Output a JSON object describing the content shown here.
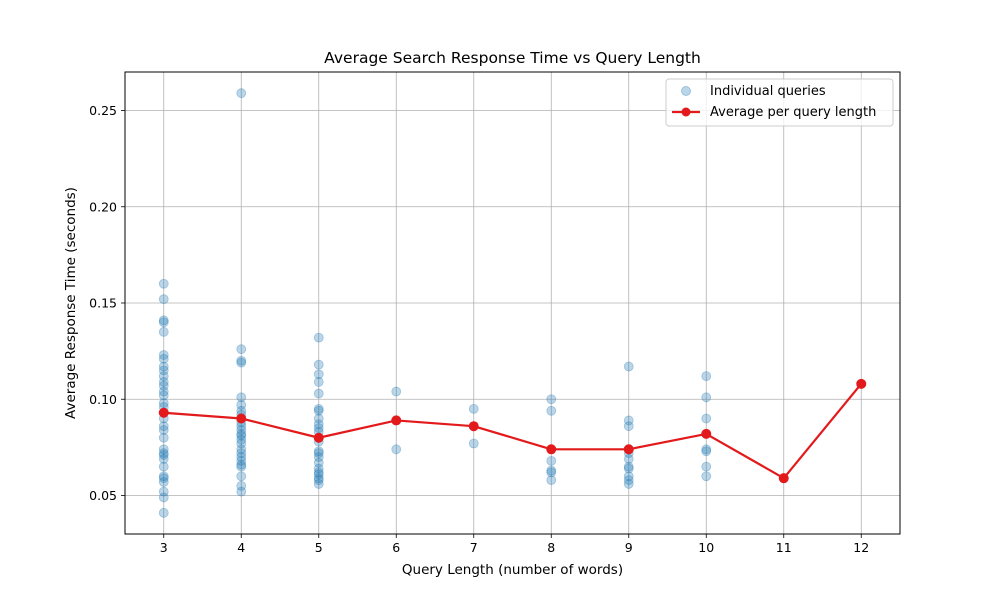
{
  "chart_data": {
    "type": "scatter",
    "title": "Average Search Response Time vs Query Length",
    "xlabel": "Query Length (number of words)",
    "ylabel": "Average Response Time (seconds)",
    "xlim": [
      2.5,
      12.5
    ],
    "ylim": [
      0.03,
      0.27
    ],
    "xticks": [
      3,
      4,
      5,
      6,
      7,
      8,
      9,
      10,
      11,
      12
    ],
    "yticks": [
      0.05,
      0.1,
      0.15,
      0.2,
      0.25
    ],
    "ytick_labels": [
      "0.05",
      "0.10",
      "0.15",
      "0.20",
      "0.25"
    ],
    "grid": true,
    "legend_position": "top-right",
    "series": [
      {
        "name": "Individual queries",
        "kind": "scatter",
        "color": "#1f77b4",
        "points": [
          {
            "x": 3,
            "y": 0.16
          },
          {
            "x": 3,
            "y": 0.152
          },
          {
            "x": 3,
            "y": 0.141
          },
          {
            "x": 3,
            "y": 0.14
          },
          {
            "x": 3,
            "y": 0.135
          },
          {
            "x": 3,
            "y": 0.123
          },
          {
            "x": 3,
            "y": 0.121
          },
          {
            "x": 3,
            "y": 0.117
          },
          {
            "x": 3,
            "y": 0.115
          },
          {
            "x": 3,
            "y": 0.112
          },
          {
            "x": 3,
            "y": 0.109
          },
          {
            "x": 3,
            "y": 0.107
          },
          {
            "x": 3,
            "y": 0.104
          },
          {
            "x": 3,
            "y": 0.102
          },
          {
            "x": 3,
            "y": 0.098
          },
          {
            "x": 3,
            "y": 0.096
          },
          {
            "x": 3,
            "y": 0.093
          },
          {
            "x": 3,
            "y": 0.09
          },
          {
            "x": 3,
            "y": 0.086
          },
          {
            "x": 3,
            "y": 0.084
          },
          {
            "x": 3,
            "y": 0.08
          },
          {
            "x": 3,
            "y": 0.074
          },
          {
            "x": 3,
            "y": 0.072
          },
          {
            "x": 3,
            "y": 0.071
          },
          {
            "x": 3,
            "y": 0.069
          },
          {
            "x": 3,
            "y": 0.065
          },
          {
            "x": 3,
            "y": 0.06
          },
          {
            "x": 3,
            "y": 0.059
          },
          {
            "x": 3,
            "y": 0.057
          },
          {
            "x": 3,
            "y": 0.052
          },
          {
            "x": 3,
            "y": 0.049
          },
          {
            "x": 3,
            "y": 0.041
          },
          {
            "x": 4,
            "y": 0.259
          },
          {
            "x": 4,
            "y": 0.126
          },
          {
            "x": 4,
            "y": 0.12
          },
          {
            "x": 4,
            "y": 0.119
          },
          {
            "x": 4,
            "y": 0.101
          },
          {
            "x": 4,
            "y": 0.097
          },
          {
            "x": 4,
            "y": 0.094
          },
          {
            "x": 4,
            "y": 0.092
          },
          {
            "x": 4,
            "y": 0.09
          },
          {
            "x": 4,
            "y": 0.088
          },
          {
            "x": 4,
            "y": 0.086
          },
          {
            "x": 4,
            "y": 0.084
          },
          {
            "x": 4,
            "y": 0.082
          },
          {
            "x": 4,
            "y": 0.081
          },
          {
            "x": 4,
            "y": 0.079
          },
          {
            "x": 4,
            "y": 0.077
          },
          {
            "x": 4,
            "y": 0.074
          },
          {
            "x": 4,
            "y": 0.072
          },
          {
            "x": 4,
            "y": 0.07
          },
          {
            "x": 4,
            "y": 0.068
          },
          {
            "x": 4,
            "y": 0.066
          },
          {
            "x": 4,
            "y": 0.065
          },
          {
            "x": 4,
            "y": 0.06
          },
          {
            "x": 4,
            "y": 0.055
          },
          {
            "x": 4,
            "y": 0.052
          },
          {
            "x": 5,
            "y": 0.132
          },
          {
            "x": 5,
            "y": 0.118
          },
          {
            "x": 5,
            "y": 0.113
          },
          {
            "x": 5,
            "y": 0.109
          },
          {
            "x": 5,
            "y": 0.103
          },
          {
            "x": 5,
            "y": 0.095
          },
          {
            "x": 5,
            "y": 0.094
          },
          {
            "x": 5,
            "y": 0.09
          },
          {
            "x": 5,
            "y": 0.087
          },
          {
            "x": 5,
            "y": 0.085
          },
          {
            "x": 5,
            "y": 0.083
          },
          {
            "x": 5,
            "y": 0.08
          },
          {
            "x": 5,
            "y": 0.078
          },
          {
            "x": 5,
            "y": 0.073
          },
          {
            "x": 5,
            "y": 0.072
          },
          {
            "x": 5,
            "y": 0.07
          },
          {
            "x": 5,
            "y": 0.067
          },
          {
            "x": 5,
            "y": 0.064
          },
          {
            "x": 5,
            "y": 0.062
          },
          {
            "x": 5,
            "y": 0.061
          },
          {
            "x": 5,
            "y": 0.059
          },
          {
            "x": 5,
            "y": 0.058
          },
          {
            "x": 5,
            "y": 0.056
          },
          {
            "x": 6,
            "y": 0.104
          },
          {
            "x": 6,
            "y": 0.074
          },
          {
            "x": 7,
            "y": 0.095
          },
          {
            "x": 7,
            "y": 0.077
          },
          {
            "x": 8,
            "y": 0.1
          },
          {
            "x": 8,
            "y": 0.094
          },
          {
            "x": 8,
            "y": 0.068
          },
          {
            "x": 8,
            "y": 0.063
          },
          {
            "x": 8,
            "y": 0.062
          },
          {
            "x": 8,
            "y": 0.058
          },
          {
            "x": 9,
            "y": 0.117
          },
          {
            "x": 9,
            "y": 0.089
          },
          {
            "x": 9,
            "y": 0.086
          },
          {
            "x": 9,
            "y": 0.074
          },
          {
            "x": 9,
            "y": 0.072
          },
          {
            "x": 9,
            "y": 0.069
          },
          {
            "x": 9,
            "y": 0.065
          },
          {
            "x": 9,
            "y": 0.064
          },
          {
            "x": 9,
            "y": 0.06
          },
          {
            "x": 9,
            "y": 0.058
          },
          {
            "x": 9,
            "y": 0.056
          },
          {
            "x": 10,
            "y": 0.112
          },
          {
            "x": 10,
            "y": 0.101
          },
          {
            "x": 10,
            "y": 0.09
          },
          {
            "x": 10,
            "y": 0.074
          },
          {
            "x": 10,
            "y": 0.073
          },
          {
            "x": 10,
            "y": 0.065
          },
          {
            "x": 10,
            "y": 0.06
          }
        ]
      },
      {
        "name": "Average per query length",
        "kind": "line",
        "color": "#e31a1c",
        "x": [
          3,
          4,
          5,
          6,
          7,
          8,
          9,
          10,
          11,
          12
        ],
        "values": [
          0.093,
          0.09,
          0.08,
          0.089,
          0.086,
          0.074,
          0.074,
          0.082,
          0.059,
          0.108
        ]
      }
    ]
  }
}
